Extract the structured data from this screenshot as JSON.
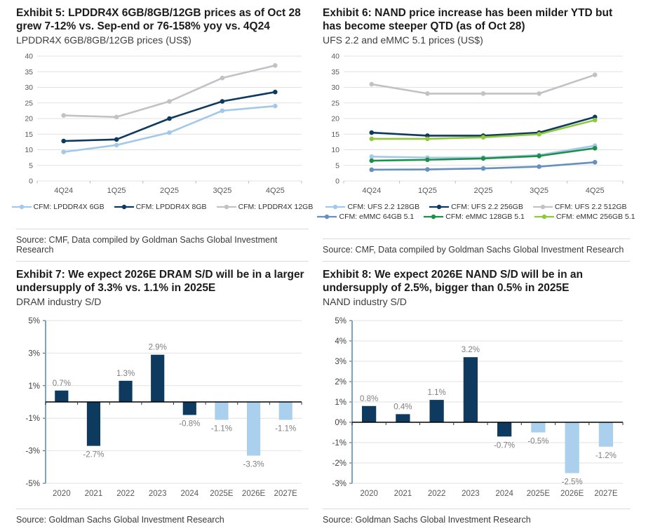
{
  "page": {
    "background": "#ffffff",
    "divider_color": "#d9d9d9"
  },
  "panels": [
    {
      "title": "Exhibit 5: LPDDR4X 6GB/8GB/12GB prices as of Oct 28 grew 7-12% vs. Sep-end or 76-158% yoy vs. 4Q24",
      "subtitle": "LPDDR4X 6GB/8GB/12GB prices (US$)",
      "source": "Source: CMF, Data compiled by Goldman Sachs Global Investment Research"
    },
    {
      "title": "Exhibit 6: NAND price increase has been milder YTD but has become steeper QTD (as of Oct 28)",
      "subtitle": "UFS 2.2 and eMMC 5.1 prices (US$)",
      "source": "Source: CMF, Data compiled by Goldman Sachs Global Investment Research"
    },
    {
      "title": "Exhibit 7: We expect 2026E DRAM S/D will be in a larger undersupply of 3.3% vs. 1.1% in 2025E",
      "subtitle": "DRAM industry S/D",
      "source": "Source: Goldman Sachs Global Investment Research"
    },
    {
      "title": "Exhibit 8: We expect 2026E NAND S/D will be in an undersupply of 2.5%, bigger than 0.5% in 2025E",
      "subtitle": "NAND industry S/D",
      "source": "Source: Goldman Sachs Global Investment Research"
    }
  ],
  "chart_data": [
    {
      "type": "line",
      "title": "LPDDR4X 6GB/8GB/12GB prices (US$)",
      "categories": [
        "4Q24",
        "1Q25",
        "2Q25",
        "3Q25",
        "4Q25"
      ],
      "series": [
        {
          "name": "CFM: LPDDR4X 6GB",
          "color": "#a3c9ea",
          "values": [
            9.3,
            11.5,
            15.5,
            22.5,
            24.0
          ]
        },
        {
          "name": "CFM: LPDDR4X 8GB",
          "color": "#0f3a5f",
          "values": [
            12.8,
            13.3,
            20.0,
            25.5,
            28.5
          ]
        },
        {
          "name": "CFM: LPDDR4X 12GB",
          "color": "#c2c2c6",
          "values": [
            21.0,
            20.5,
            25.5,
            33.0,
            37.0
          ]
        }
      ],
      "ylim": [
        0,
        40
      ],
      "ytick": 5,
      "grid": true,
      "legend_position": "bottom",
      "legend_rows": [
        [
          0,
          1,
          2
        ]
      ]
    },
    {
      "type": "line",
      "title": "UFS 2.2 and eMMC 5.1 prices (US$)",
      "categories": [
        "4Q24",
        "1Q25",
        "2Q25",
        "3Q25",
        "4Q25"
      ],
      "series": [
        {
          "name": "CFM: UFS 2.2 128GB",
          "color": "#a3c9ea",
          "values": [
            7.8,
            7.5,
            7.5,
            8.3,
            11.3
          ]
        },
        {
          "name": "CFM: UFS 2.2 256GB",
          "color": "#0f3a5f",
          "values": [
            15.5,
            14.5,
            14.5,
            15.5,
            20.5
          ]
        },
        {
          "name": "CFM: UFS 2.2 512GB",
          "color": "#c2c2c6",
          "values": [
            31.0,
            28.0,
            28.0,
            28.0,
            34.0
          ]
        },
        {
          "name": "CFM: eMMC 64GB 5.1",
          "color": "#6590c0",
          "values": [
            3.6,
            3.7,
            4.0,
            4.6,
            6.0
          ]
        },
        {
          "name": "CFM: eMMC 128GB 5.1",
          "color": "#1d9048",
          "values": [
            6.5,
            6.8,
            7.2,
            8.0,
            10.5
          ]
        },
        {
          "name": "CFM: eMMC 256GB 5.1",
          "color": "#90c83d",
          "values": [
            13.5,
            13.5,
            14.0,
            15.0,
            19.5
          ]
        }
      ],
      "ylim": [
        0,
        40
      ],
      "ytick": 5,
      "grid": true,
      "legend_position": "bottom",
      "legend_rows": [
        [
          0,
          1,
          2
        ],
        [
          3,
          4,
          5
        ]
      ]
    },
    {
      "type": "bar",
      "title": "DRAM industry S/D",
      "categories": [
        "2020",
        "2021",
        "2022",
        "2023",
        "2024",
        "2025E",
        "2026E",
        "2027E"
      ],
      "values": [
        0.7,
        -2.7,
        1.3,
        2.9,
        -0.8,
        -1.1,
        -3.3,
        -1.1
      ],
      "labels": [
        "0.7%",
        "-2.7%",
        "1.3%",
        "2.9%",
        "-0.8%",
        "-1.1%",
        "-3.3%",
        "-1.1%"
      ],
      "bar_colors": [
        "#0f3a5f",
        "#0f3a5f",
        "#0f3a5f",
        "#0f3a5f",
        "#0f3a5f",
        "#abd0ed",
        "#abd0ed",
        "#abd0ed"
      ],
      "color_navy": "#0f3a5f",
      "color_light_blue": "#abd0ed",
      "label_color": "#7f7f7f",
      "axis_color": "#7ba3c4",
      "ylim": [
        -5,
        5
      ],
      "ytick": 2,
      "ytick_suffix": "%",
      "grid": true,
      "xlabel": "",
      "ylabel": ""
    },
    {
      "type": "bar",
      "title": "NAND industry S/D",
      "categories": [
        "2020",
        "2021",
        "2022",
        "2023",
        "2024",
        "2025E",
        "2026E",
        "2027E"
      ],
      "values": [
        0.8,
        0.4,
        1.1,
        3.2,
        -0.7,
        -0.5,
        -2.5,
        -1.2
      ],
      "labels": [
        "0.8%",
        "0.4%",
        "1.1%",
        "3.2%",
        "-0.7%",
        "-0.5%",
        "-2.5%",
        "-1.2%"
      ],
      "bar_colors": [
        "#0f3a5f",
        "#0f3a5f",
        "#0f3a5f",
        "#0f3a5f",
        "#0f3a5f",
        "#abd0ed",
        "#abd0ed",
        "#abd0ed"
      ],
      "color_navy": "#0f3a5f",
      "color_light_blue": "#abd0ed",
      "label_color": "#7f7f7f",
      "axis_color": "#7ba3c4",
      "ylim": [
        -3,
        5
      ],
      "ytick": 1,
      "ytick_suffix": "%",
      "grid": true,
      "xlabel": "",
      "ylabel": ""
    }
  ],
  "style": {
    "gridline_color": "#e2e2e2",
    "tick_label_color": "#595959",
    "bar_axis_label_color": "#404040",
    "zero_line_color": "#000000"
  }
}
